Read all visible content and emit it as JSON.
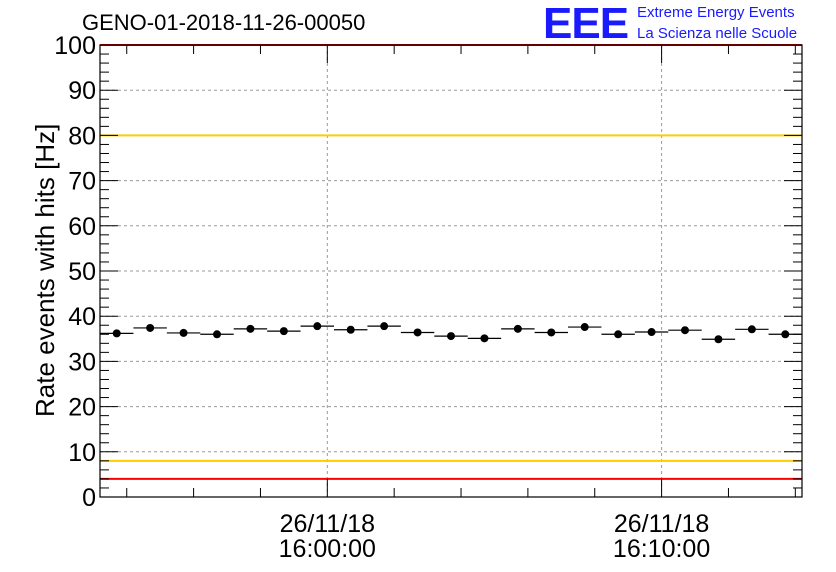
{
  "header": {
    "title": "GENO-01-2018-11-26-00050",
    "logo_mark": "EEE",
    "logo_line1": "Extreme Energy Events",
    "logo_line2": "La Scienza nelle Scuole"
  },
  "chart_data": {
    "type": "scatter",
    "title": "GENO-01-2018-11-26-00050",
    "xlabel": "",
    "ylabel": "Rate events with hits [Hz]",
    "ylim": [
      0,
      100
    ],
    "xlim_minutes": [
      -6.8,
      14.2
    ],
    "yticks": [
      0,
      10,
      20,
      30,
      40,
      50,
      60,
      70,
      80,
      90,
      100
    ],
    "xticks": [
      {
        "minutes": 0,
        "date": "26/11/18",
        "time": "16:00:00"
      },
      {
        "minutes": 10,
        "date": "26/11/18",
        "time": "16:10:00"
      }
    ],
    "grid": true,
    "reference_lines": [
      {
        "value": 100,
        "color": "#ff0000"
      },
      {
        "value": 80,
        "color": "#ffcc00"
      },
      {
        "value": 8,
        "color": "#ffcc00"
      },
      {
        "value": 4,
        "color": "#ff0000"
      }
    ],
    "series": [
      {
        "color": "#000000",
        "bin_width_minutes": 1,
        "x_minutes": [
          -6.3,
          -5.3,
          -4.3,
          -3.3,
          -2.3,
          -1.3,
          -0.3,
          0.7,
          1.7,
          2.7,
          3.7,
          4.7,
          5.7,
          6.7,
          7.7,
          8.7,
          9.7,
          10.7,
          11.7,
          12.7,
          13.7
        ],
        "values": [
          36.2,
          37.4,
          36.3,
          36.0,
          37.2,
          36.7,
          37.8,
          37.0,
          37.8,
          36.4,
          35.6,
          35.1,
          37.2,
          36.4,
          37.6,
          36.0,
          36.5,
          36.9,
          34.9,
          37.1,
          36.0
        ]
      }
    ]
  }
}
